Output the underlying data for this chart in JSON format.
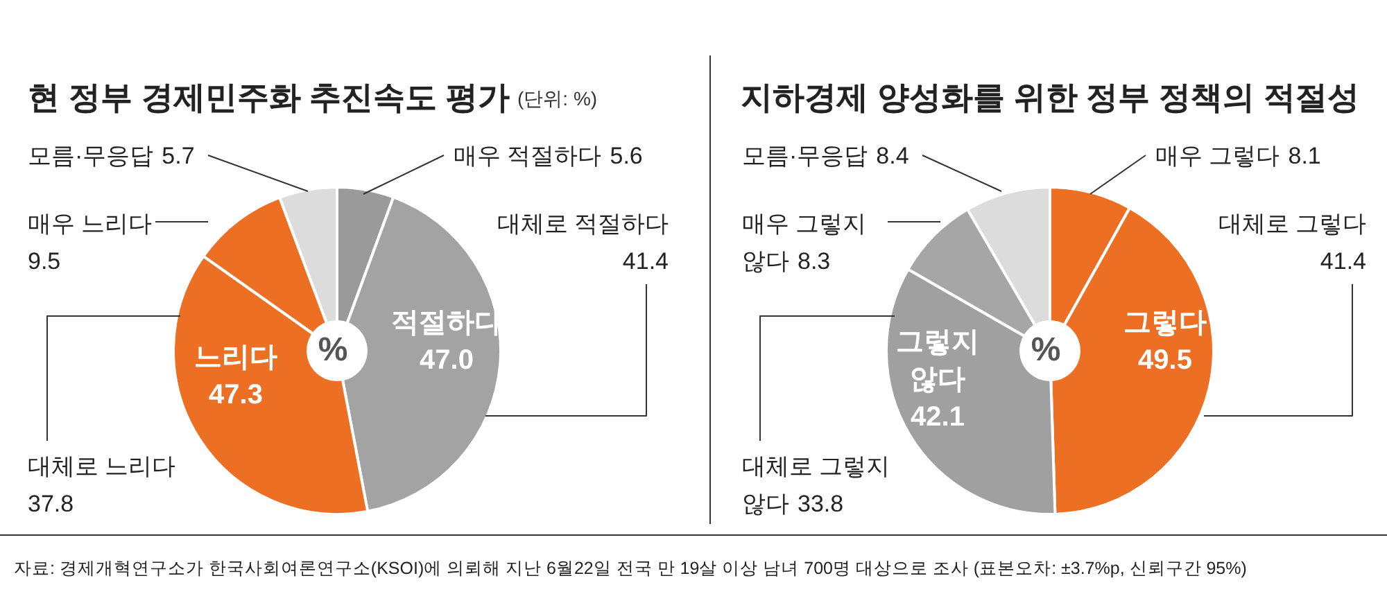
{
  "chart_data": [
    {
      "type": "pie",
      "title": "현 정부 경제민주화 추진속도 평가",
      "subtitle": "(단위: %)",
      "categories": [
        "매우 적절하다",
        "대체로 적절하다",
        "대체로 느리다",
        "매우 느리다",
        "모름·무응답"
      ],
      "values": [
        5.6,
        41.4,
        37.8,
        9.5,
        5.7
      ],
      "colors": [
        "#9a9a9a",
        "#a3a3a3",
        "#ec6f24",
        "#ec6f24",
        "#dcdcdc"
      ],
      "data_labels": true,
      "annotations": [
        "%",
        "적절하다\n47.0",
        "느리다\n47.3",
        "자료: 경제개혁연구소가 한국사회여론연구소(KSOI)에 의뢰해 지난 6월22일 전국 만 19살 이상 남녀 700명 대상으로 조사 (표본오차: ±3.7%p, 신뢰구간 95%)"
      ]
    },
    {
      "type": "pie",
      "title": "지하경제 양성화를 위한 정부 정책의 적절성",
      "categories": [
        "매우 그렇다",
        "대체로 그렇다",
        "대체로 그렇지 않다",
        "매우 그렇지 않다",
        "모름·무응답"
      ],
      "values": [
        8.1,
        41.4,
        33.8,
        8.3,
        8.4
      ],
      "colors": [
        "#ec6f24",
        "#ec6f24",
        "#a0a0a0",
        "#a6a6a6",
        "#dcdcdc"
      ],
      "data_labels": true,
      "annotations": [
        "%",
        "그렇다\n49.5",
        "그렇지\n않다\n42.1"
      ]
    }
  ]
}
